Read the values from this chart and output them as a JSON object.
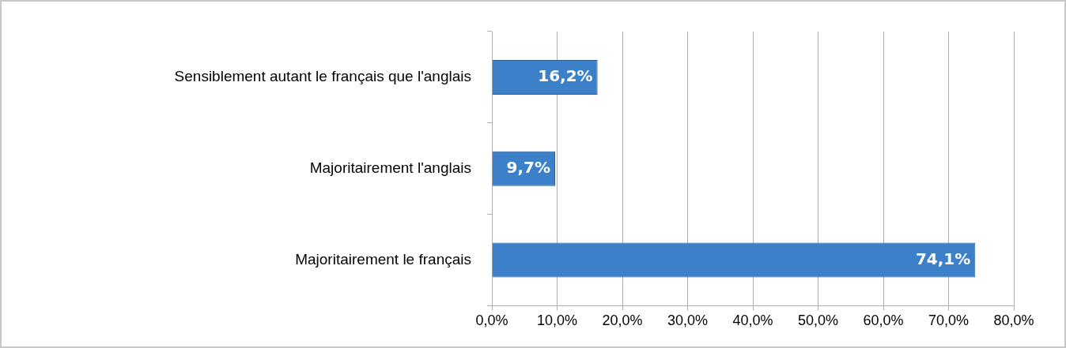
{
  "chart_data": {
    "type": "bar",
    "orientation": "horizontal",
    "categories": [
      "Sensiblement autant le français que l'anglais",
      "Majoritairement l'anglais",
      "Majoritairement le français"
    ],
    "values": [
      16.2,
      9.7,
      74.1
    ],
    "color": "#3b80c8",
    "value_labels": [
      "16,2%",
      "9,7%",
      "74,1%"
    ],
    "xlim": [
      0,
      80
    ],
    "xticks": [
      {
        "value": 0,
        "label": "0,0%"
      },
      {
        "value": 10,
        "label": "10,0%"
      },
      {
        "value": 20,
        "label": "20,0%"
      },
      {
        "value": 30,
        "label": "30,0%"
      },
      {
        "value": 40,
        "label": "40,0%"
      },
      {
        "value": 50,
        "label": "50,0%"
      },
      {
        "value": 60,
        "label": "60,0%"
      },
      {
        "value": 70,
        "label": "70,0%"
      },
      {
        "value": 80,
        "label": "80,0%"
      }
    ],
    "grid": "x",
    "legend": false
  }
}
